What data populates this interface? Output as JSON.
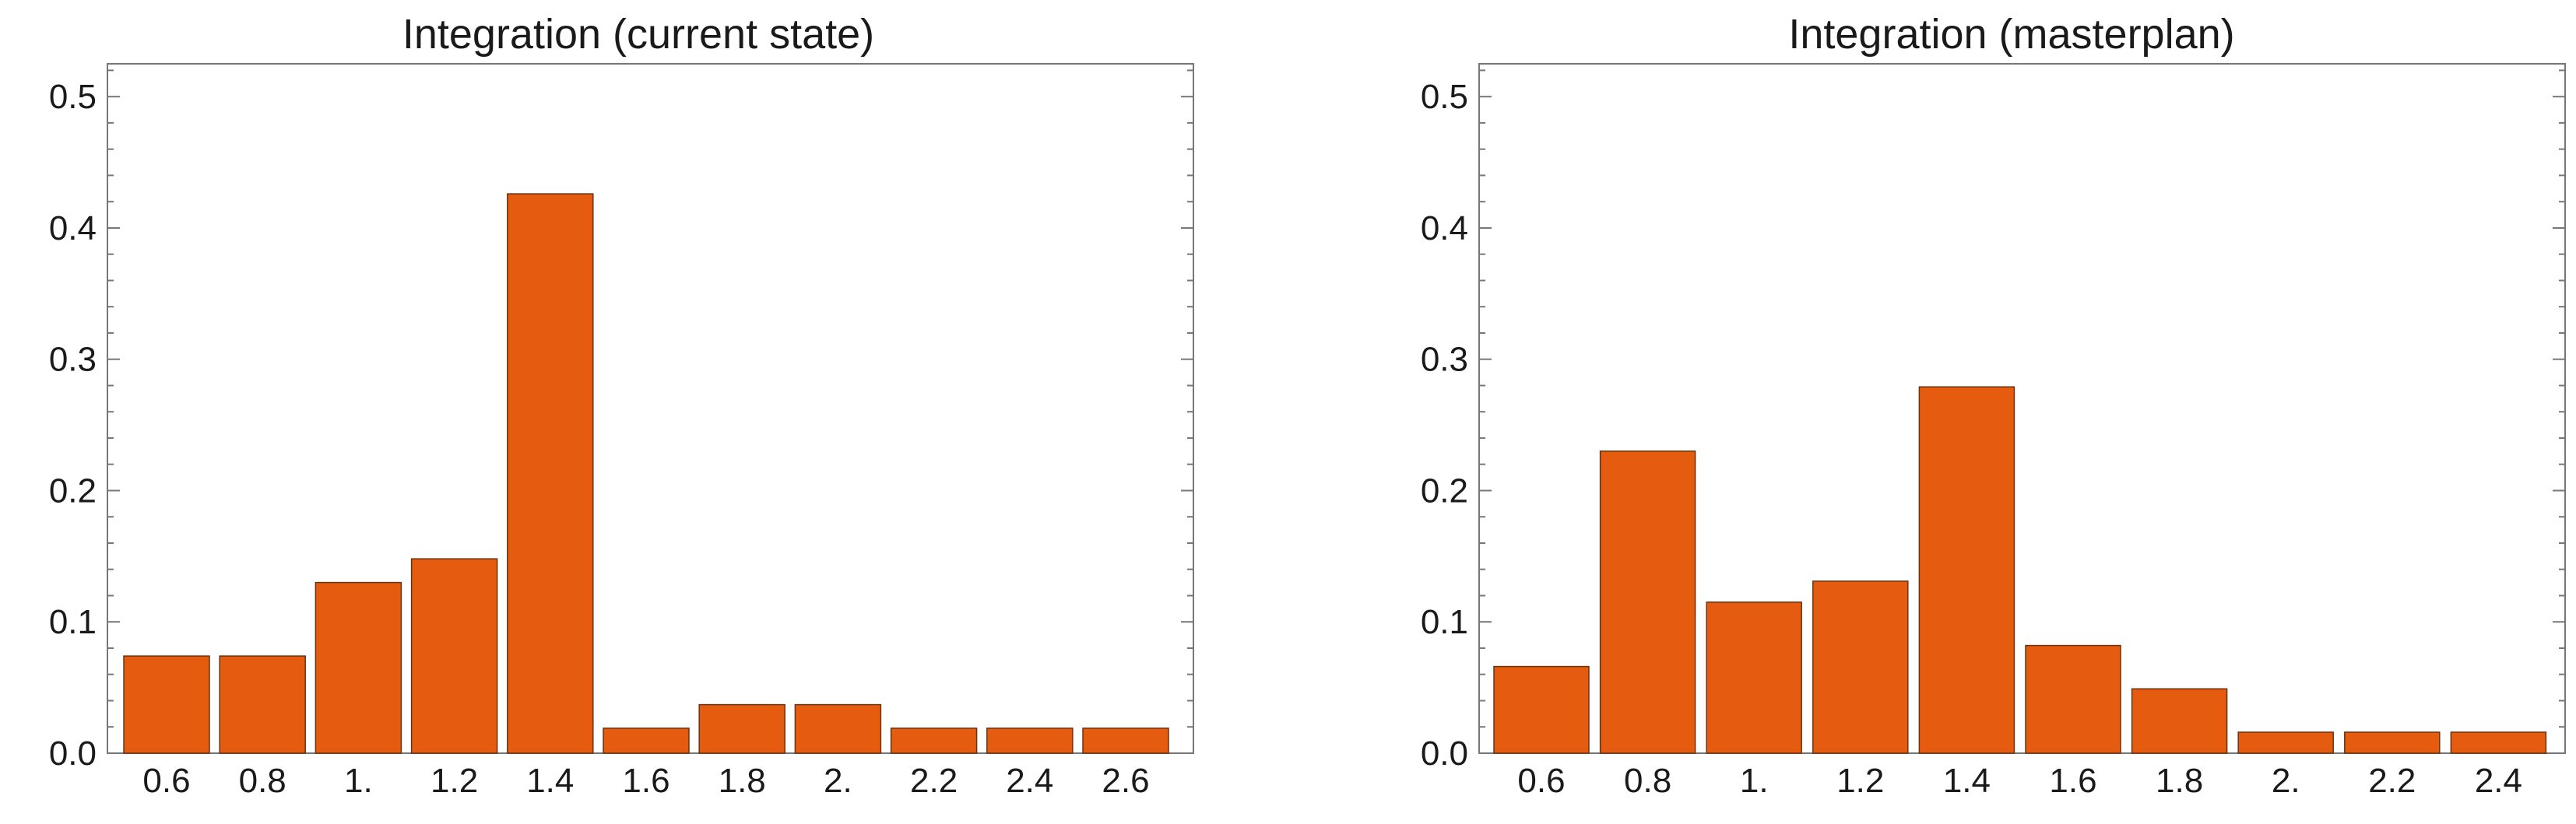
{
  "chart_data": [
    {
      "type": "bar",
      "title": "Integration (current state)",
      "categories": [
        "0.6",
        "0.8",
        "1.",
        "1.2",
        "1.4",
        "1.6",
        "1.8",
        "2.",
        "2.2",
        "2.4",
        "2.6"
      ],
      "values": [
        0.074,
        0.074,
        0.13,
        0.148,
        0.426,
        0.019,
        0.037,
        0.037,
        0.019,
        0.019,
        0.019
      ],
      "xlabel": "",
      "ylabel": "",
      "ylim": [
        0,
        0.525
      ],
      "yticks": [
        "0.0",
        "0.1",
        "0.2",
        "0.3",
        "0.4",
        "0.5"
      ],
      "bar_color": "#e55b0f",
      "grid": false
    },
    {
      "type": "bar",
      "title": "Integration (masterplan)",
      "categories": [
        "0.6",
        "0.8",
        "1.",
        "1.2",
        "1.4",
        "1.6",
        "1.8",
        "2.",
        "2.2",
        "2.4"
      ],
      "values": [
        0.066,
        0.23,
        0.115,
        0.131,
        0.279,
        0.082,
        0.049,
        0.016,
        0.016,
        0.016
      ],
      "xlabel": "",
      "ylabel": "",
      "ylim": [
        0,
        0.525
      ],
      "yticks": [
        "0.0",
        "0.1",
        "0.2",
        "0.3",
        "0.4",
        "0.5"
      ],
      "bar_color": "#e55b0f",
      "grid": false
    }
  ]
}
